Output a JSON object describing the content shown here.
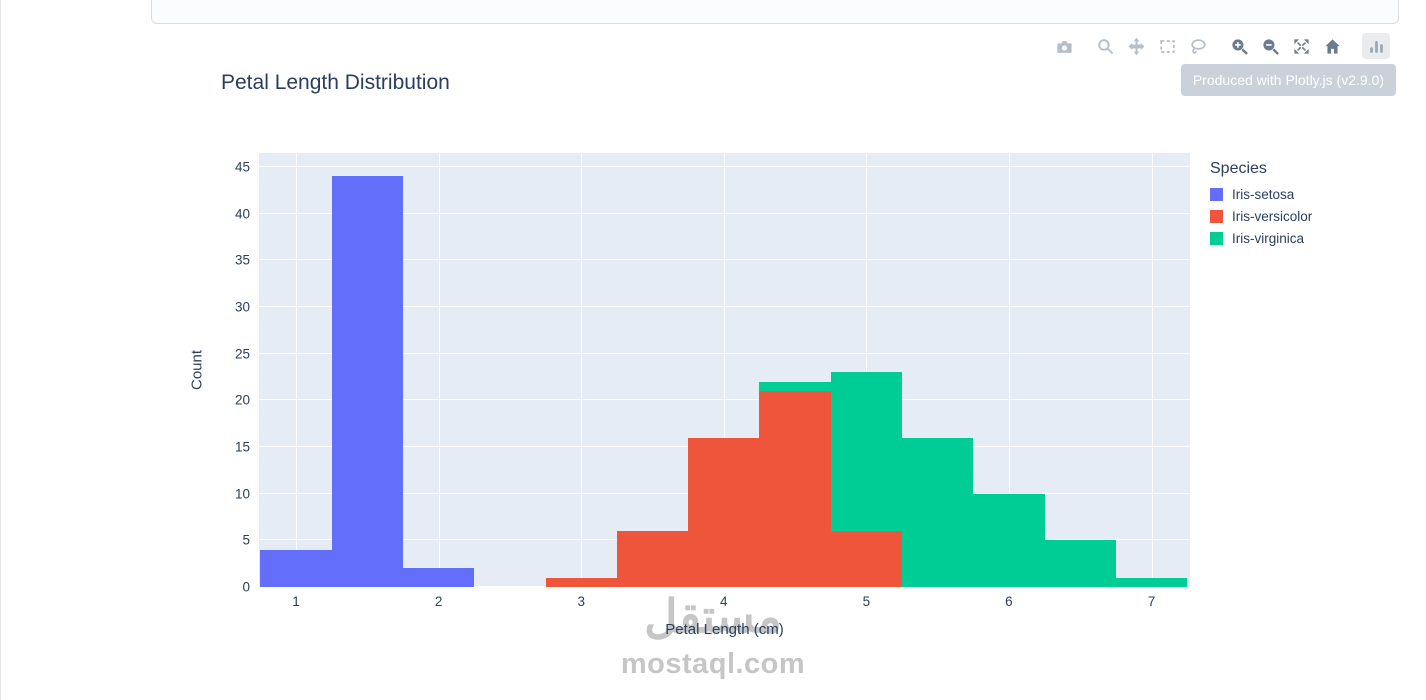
{
  "modebar": {
    "icons": [
      "camera",
      "zoom",
      "pan",
      "box-select",
      "lasso-select",
      "zoom-in",
      "zoom-out",
      "autoscale",
      "reset-axes",
      "plotly-logo"
    ],
    "tooltip": "Produced with Plotly.js (v2.9.0)"
  },
  "chart_data": {
    "type": "bar",
    "subtype": "histogram",
    "title": "Petal Length Distribution",
    "xlabel": "Petal Length (cm)",
    "ylabel": "Count",
    "legend_title": "Species",
    "legend_position": "right",
    "barmode": "stack",
    "grid": true,
    "bin_size": 0.5,
    "x_ticks": [
      1,
      2,
      3,
      4,
      5,
      6,
      7
    ],
    "y_ticks": [
      0,
      5,
      10,
      15,
      20,
      25,
      30,
      35,
      40,
      45
    ],
    "x_range": [
      0.74,
      7.27
    ],
    "y_range": [
      0,
      46.5
    ],
    "plot_bgcolor": "#E5ECF6",
    "grid_color": "#FFFFFF",
    "text_color": "#2A3F5F",
    "series": [
      {
        "name": "Iris-setosa",
        "color": "#636EFA",
        "bins": [
          {
            "x0": 0.75,
            "count": 4
          },
          {
            "x0": 1.25,
            "count": 44
          },
          {
            "x0": 1.75,
            "count": 2
          }
        ]
      },
      {
        "name": "Iris-versicolor",
        "color": "#EF553B",
        "bins": [
          {
            "x0": 2.75,
            "count": 1
          },
          {
            "x0": 3.25,
            "count": 6
          },
          {
            "x0": 3.75,
            "count": 16
          },
          {
            "x0": 4.25,
            "count": 21
          },
          {
            "x0": 4.75,
            "count": 6
          }
        ]
      },
      {
        "name": "Iris-virginica",
        "color": "#00CC96",
        "bins": [
          {
            "x0": 4.25,
            "count": 1
          },
          {
            "x0": 4.75,
            "count": 17
          },
          {
            "x0": 5.25,
            "count": 16
          },
          {
            "x0": 5.75,
            "count": 10
          },
          {
            "x0": 6.25,
            "count": 5
          },
          {
            "x0": 6.75,
            "count": 1
          }
        ]
      }
    ]
  },
  "watermark": {
    "arabic": "مستقل",
    "latin": "mostaql.com"
  }
}
